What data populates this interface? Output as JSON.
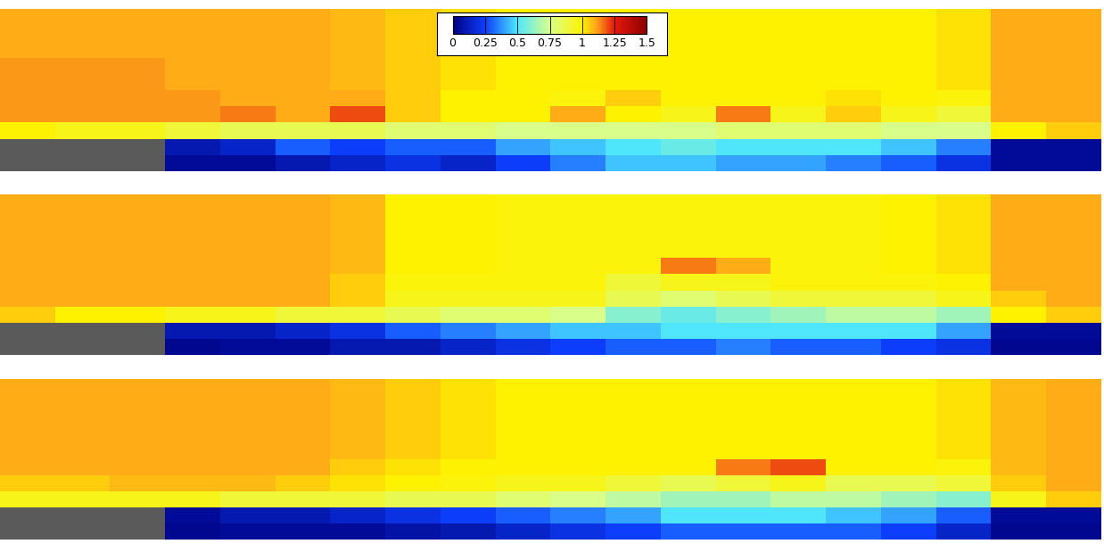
{
  "chart_data": [
    {
      "type": "heatmap",
      "tick_labels": false,
      "colorbar": {
        "range": [
          0,
          1.5
        ],
        "ticks": [
          0,
          0.25,
          0.5,
          0.75,
          1,
          1.25,
          1.5
        ]
      },
      "cells": [
        [
          1.1,
          1.1,
          1.1,
          1.1,
          1.1,
          1.1,
          1.08,
          1.05,
          1.02,
          1.0,
          1.0,
          1.0,
          1.0,
          1.0,
          1.0,
          1.0,
          1.0,
          1.02,
          1.1,
          1.1
        ],
        [
          1.1,
          1.1,
          1.1,
          1.1,
          1.1,
          1.1,
          1.08,
          1.05,
          1.02,
          1.0,
          1.0,
          1.0,
          1.0,
          1.0,
          1.0,
          1.0,
          1.0,
          1.02,
          1.1,
          1.1
        ],
        [
          1.1,
          1.1,
          1.1,
          1.1,
          1.1,
          1.1,
          1.08,
          1.05,
          1.02,
          1.0,
          1.0,
          1.0,
          1.0,
          1.0,
          1.0,
          1.0,
          1.0,
          1.02,
          1.1,
          1.1
        ],
        [
          1.12,
          1.12,
          1.12,
          1.1,
          1.1,
          1.1,
          1.08,
          1.05,
          1.02,
          1.0,
          1.0,
          1.0,
          1.0,
          1.0,
          1.0,
          1.0,
          1.0,
          1.02,
          1.1,
          1.1
        ],
        [
          1.12,
          1.12,
          1.12,
          1.1,
          1.1,
          1.1,
          1.08,
          1.05,
          1.02,
          1.0,
          1.0,
          1.0,
          1.0,
          1.0,
          1.0,
          1.0,
          1.0,
          1.02,
          1.1,
          1.1
        ],
        [
          1.12,
          1.12,
          1.12,
          1.12,
          1.1,
          1.1,
          1.1,
          1.05,
          1.0,
          1.0,
          0.98,
          1.05,
          1.0,
          1.0,
          1.0,
          1.02,
          1.0,
          0.98,
          1.1,
          1.1
        ],
        [
          1.12,
          1.12,
          1.12,
          1.12,
          1.15,
          1.1,
          1.2,
          1.05,
          1.0,
          1.0,
          1.1,
          1.0,
          0.95,
          1.15,
          0.95,
          1.05,
          0.95,
          0.9,
          1.1,
          1.1
        ],
        [
          1.0,
          0.95,
          0.95,
          0.9,
          0.85,
          0.85,
          0.85,
          0.8,
          0.8,
          0.75,
          0.75,
          0.75,
          0.75,
          0.8,
          0.8,
          0.8,
          0.75,
          0.75,
          1.0,
          1.05
        ],
        [
          null,
          null,
          null,
          0.1,
          0.15,
          0.3,
          0.25,
          0.3,
          0.3,
          0.4,
          0.45,
          0.5,
          0.55,
          0.5,
          0.5,
          0.5,
          0.45,
          0.35,
          0.05,
          0.05
        ],
        [
          null,
          null,
          null,
          0.05,
          0.05,
          0.1,
          0.15,
          0.2,
          0.15,
          0.25,
          0.35,
          0.45,
          0.45,
          0.4,
          0.4,
          0.35,
          0.3,
          0.2,
          0.05,
          0.05
        ]
      ]
    },
    {
      "type": "heatmap",
      "tick_labels": false,
      "cells": [
        [
          1.1,
          1.1,
          1.1,
          1.1,
          1.1,
          1.1,
          1.08,
          1.0,
          1.0,
          0.98,
          0.98,
          0.98,
          0.98,
          0.98,
          0.98,
          0.98,
          1.0,
          1.02,
          1.1,
          1.1
        ],
        [
          1.1,
          1.1,
          1.1,
          1.1,
          1.1,
          1.1,
          1.08,
          1.0,
          1.0,
          0.98,
          0.98,
          0.98,
          0.98,
          0.98,
          0.98,
          0.98,
          1.0,
          1.02,
          1.1,
          1.1
        ],
        [
          1.1,
          1.1,
          1.1,
          1.1,
          1.1,
          1.1,
          1.08,
          1.0,
          1.0,
          0.98,
          0.98,
          0.98,
          0.98,
          0.98,
          0.98,
          0.98,
          1.0,
          1.02,
          1.1,
          1.1
        ],
        [
          1.1,
          1.1,
          1.1,
          1.1,
          1.1,
          1.1,
          1.08,
          1.0,
          1.0,
          0.98,
          0.98,
          0.98,
          0.98,
          0.98,
          0.98,
          0.98,
          1.0,
          1.02,
          1.1,
          1.1
        ],
        [
          1.1,
          1.1,
          1.1,
          1.1,
          1.1,
          1.1,
          1.08,
          1.0,
          1.0,
          0.98,
          0.98,
          0.98,
          1.15,
          1.1,
          0.98,
          0.98,
          1.0,
          1.02,
          1.1,
          1.1
        ],
        [
          1.1,
          1.1,
          1.1,
          1.1,
          1.1,
          1.1,
          1.05,
          0.98,
          0.98,
          0.98,
          0.98,
          0.9,
          0.95,
          0.95,
          0.98,
          0.98,
          0.98,
          1.0,
          1.1,
          1.1
        ],
        [
          1.1,
          1.1,
          1.1,
          1.1,
          1.1,
          1.1,
          1.05,
          0.95,
          0.95,
          0.95,
          0.95,
          0.85,
          0.8,
          0.85,
          0.9,
          0.9,
          0.9,
          0.95,
          1.05,
          1.1
        ],
        [
          1.05,
          1.0,
          1.0,
          0.95,
          0.95,
          0.9,
          0.9,
          0.85,
          0.8,
          0.8,
          0.75,
          0.6,
          0.55,
          0.6,
          0.65,
          0.7,
          0.7,
          0.65,
          1.0,
          1.05
        ],
        [
          null,
          null,
          null,
          0.1,
          0.1,
          0.15,
          0.2,
          0.3,
          0.35,
          0.4,
          0.45,
          0.45,
          0.5,
          0.5,
          0.5,
          0.5,
          0.5,
          0.4,
          0.05,
          0.05
        ],
        [
          null,
          null,
          null,
          0.03,
          0.05,
          0.05,
          0.1,
          0.1,
          0.15,
          0.2,
          0.25,
          0.3,
          0.3,
          0.35,
          0.3,
          0.3,
          0.25,
          0.2,
          0.03,
          0.03
        ]
      ]
    },
    {
      "type": "heatmap",
      "tick_labels": false,
      "cells": [
        [
          1.1,
          1.1,
          1.1,
          1.1,
          1.1,
          1.1,
          1.08,
          1.05,
          1.02,
          1.0,
          1.0,
          1.0,
          1.0,
          1.0,
          1.0,
          1.0,
          1.0,
          1.02,
          1.08,
          1.1
        ],
        [
          1.1,
          1.1,
          1.1,
          1.1,
          1.1,
          1.1,
          1.08,
          1.05,
          1.02,
          1.0,
          1.0,
          1.0,
          1.0,
          1.0,
          1.0,
          1.0,
          1.0,
          1.02,
          1.08,
          1.1
        ],
        [
          1.1,
          1.1,
          1.1,
          1.1,
          1.1,
          1.1,
          1.08,
          1.05,
          1.02,
          1.0,
          1.0,
          1.0,
          1.0,
          1.0,
          1.0,
          1.0,
          1.0,
          1.02,
          1.08,
          1.1
        ],
        [
          1.1,
          1.1,
          1.1,
          1.1,
          1.1,
          1.1,
          1.08,
          1.05,
          1.02,
          1.0,
          1.0,
          1.0,
          1.0,
          1.0,
          1.0,
          1.0,
          1.0,
          1.02,
          1.08,
          1.1
        ],
        [
          1.1,
          1.1,
          1.1,
          1.1,
          1.1,
          1.1,
          1.08,
          1.05,
          1.02,
          1.0,
          1.0,
          1.0,
          1.0,
          1.0,
          1.0,
          1.0,
          1.0,
          1.02,
          1.08,
          1.1
        ],
        [
          1.1,
          1.1,
          1.1,
          1.1,
          1.1,
          1.1,
          1.05,
          1.02,
          1.0,
          1.0,
          1.0,
          1.0,
          1.0,
          1.15,
          1.2,
          1.0,
          1.0,
          0.98,
          1.08,
          1.1
        ],
        [
          1.05,
          1.05,
          1.08,
          1.08,
          1.08,
          1.05,
          1.02,
          1.0,
          0.98,
          0.95,
          0.95,
          0.9,
          0.85,
          0.9,
          0.95,
          0.85,
          0.85,
          0.9,
          1.05,
          1.1
        ],
        [
          0.95,
          0.95,
          0.95,
          0.95,
          0.9,
          0.9,
          0.9,
          0.85,
          0.85,
          0.8,
          0.75,
          0.7,
          0.65,
          0.65,
          0.7,
          0.7,
          0.65,
          0.6,
          0.95,
          1.05
        ],
        [
          null,
          null,
          null,
          0.05,
          0.1,
          0.1,
          0.15,
          0.2,
          0.25,
          0.3,
          0.35,
          0.4,
          0.5,
          0.5,
          0.5,
          0.45,
          0.4,
          0.3,
          0.05,
          0.05
        ],
        [
          null,
          null,
          null,
          0.03,
          0.05,
          0.05,
          0.05,
          0.08,
          0.1,
          0.15,
          0.2,
          0.25,
          0.3,
          0.3,
          0.3,
          0.3,
          0.25,
          0.15,
          0.03,
          0.03
        ]
      ]
    }
  ]
}
